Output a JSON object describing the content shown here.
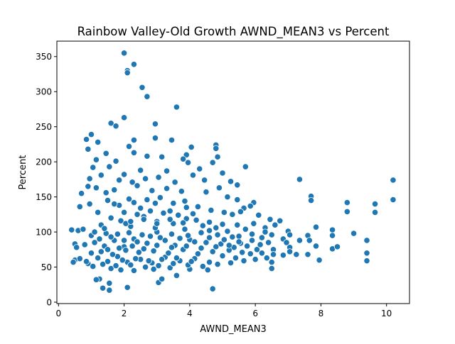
{
  "chart_data": {
    "type": "scatter",
    "title": "Rainbow Valley-Old Growth AWND_MEAN3 vs Percent",
    "xlabel": "AWND_MEAN3",
    "ylabel": "Percent",
    "xlim": [
      -0.05,
      10.7
    ],
    "ylim": [
      -2,
      372
    ],
    "xticks": [
      0,
      2,
      4,
      6,
      8,
      10
    ],
    "yticks": [
      0,
      50,
      100,
      150,
      200,
      250,
      300,
      350
    ],
    "grid": false,
    "marker_color": "#1f77b4",
    "marker_edge_color": "#ffffff",
    "series": [
      {
        "points": [
          [
            2.0,
            355
          ],
          [
            2.3,
            339
          ],
          [
            2.1,
            330
          ],
          [
            2.1,
            327
          ],
          [
            2.55,
            306
          ],
          [
            2.7,
            293
          ],
          [
            3.6,
            278
          ],
          [
            2.0,
            263
          ],
          [
            1.6,
            255
          ],
          [
            2.95,
            254
          ],
          [
            1.75,
            251
          ],
          [
            1.0,
            239
          ],
          [
            0.85,
            232
          ],
          [
            2.3,
            231
          ],
          [
            2.95,
            234
          ],
          [
            3.45,
            231
          ],
          [
            1.2,
            228
          ],
          [
            4.8,
            224
          ],
          [
            4.8,
            219
          ],
          [
            4.05,
            221
          ],
          [
            0.9,
            218
          ],
          [
            2.15,
            222
          ],
          [
            2.3,
            213
          ],
          [
            1.45,
            212
          ],
          [
            1.15,
            203
          ],
          [
            2.7,
            208
          ],
          [
            3.15,
            207
          ],
          [
            3.9,
            210
          ],
          [
            4.85,
            207
          ],
          [
            1.75,
            201
          ],
          [
            1.05,
            192
          ],
          [
            1.55,
            193
          ],
          [
            2.0,
            182
          ],
          [
            2.5,
            188
          ],
          [
            3.3,
            187
          ],
          [
            3.8,
            204
          ],
          [
            4.3,
            190
          ],
          [
            5.0,
            184
          ],
          [
            5.7,
            193
          ],
          [
            3.95,
            199
          ],
          [
            4.7,
            199
          ],
          [
            0.95,
            176
          ],
          [
            1.3,
            181
          ],
          [
            1.85,
            174
          ],
          [
            2.25,
            171
          ],
          [
            2.65,
            176
          ],
          [
            3.05,
            178
          ],
          [
            3.55,
            171
          ],
          [
            4.1,
            181
          ],
          [
            4.45,
            174
          ],
          [
            5.25,
            172
          ],
          [
            5.45,
            167
          ],
          [
            0.7,
            155
          ],
          [
            0.9,
            165
          ],
          [
            1.15,
            163
          ],
          [
            1.45,
            156
          ],
          [
            1.7,
            160
          ],
          [
            2.4,
            166
          ],
          [
            2.85,
            159
          ],
          [
            3.3,
            162
          ],
          [
            3.75,
            158
          ],
          [
            4.5,
            157
          ],
          [
            4.9,
            163
          ],
          [
            5.15,
            150
          ],
          [
            5.45,
            146
          ],
          [
            5.95,
            142
          ],
          [
            5.85,
            137
          ],
          [
            5.65,
            134
          ],
          [
            0.65,
            136
          ],
          [
            0.95,
            140
          ],
          [
            1.2,
            128
          ],
          [
            1.5,
            145
          ],
          [
            1.85,
            138
          ],
          [
            2.15,
            147
          ],
          [
            2.5,
            134
          ],
          [
            2.95,
            141
          ],
          [
            3.4,
            130
          ],
          [
            3.85,
            144
          ],
          [
            4.25,
            136
          ],
          [
            4.65,
            131
          ],
          [
            5.05,
            128
          ],
          [
            5.3,
            125
          ],
          [
            5.55,
            129
          ],
          [
            6.1,
            124
          ],
          [
            6.45,
            118
          ],
          [
            6.6,
            110
          ],
          [
            6.75,
            116
          ],
          [
            6.3,
            106
          ],
          [
            5.7,
            104
          ],
          [
            0.4,
            103
          ],
          [
            0.6,
            102
          ],
          [
            0.75,
            104
          ],
          [
            1.0,
            95
          ],
          [
            1.3,
            110
          ],
          [
            1.6,
            120
          ],
          [
            1.9,
            116
          ],
          [
            2.2,
            108
          ],
          [
            2.6,
            122
          ],
          [
            3.0,
            115
          ],
          [
            3.5,
            112
          ],
          [
            3.9,
            119
          ],
          [
            4.4,
            109
          ],
          [
            4.8,
            106
          ],
          [
            5.15,
            101
          ],
          [
            5.5,
            94
          ],
          [
            5.9,
            97
          ],
          [
            6.2,
            92
          ],
          [
            6.5,
            96
          ],
          [
            6.85,
            90
          ],
          [
            7.0,
            101
          ],
          [
            7.05,
            96
          ],
          [
            0.5,
            83
          ],
          [
            0.55,
            78
          ],
          [
            0.8,
            82
          ],
          [
            1.1,
            85
          ],
          [
            1.4,
            80
          ],
          [
            1.7,
            88
          ],
          [
            2.0,
            79
          ],
          [
            2.3,
            90
          ],
          [
            2.7,
            84
          ],
          [
            3.1,
            92
          ],
          [
            3.55,
            81
          ],
          [
            4.0,
            89
          ],
          [
            4.5,
            85
          ],
          [
            4.95,
            83
          ],
          [
            5.35,
            78
          ],
          [
            5.75,
            80
          ],
          [
            6.15,
            82
          ],
          [
            6.55,
            75
          ],
          [
            6.95,
            85
          ],
          [
            7.05,
            78
          ],
          [
            7.35,
            88
          ],
          [
            7.6,
            95
          ],
          [
            7.65,
            88
          ],
          [
            7.85,
            80
          ],
          [
            7.85,
            107
          ],
          [
            8.35,
            103
          ],
          [
            8.35,
            95
          ],
          [
            0.5,
            60
          ],
          [
            0.45,
            57
          ],
          [
            0.65,
            62
          ],
          [
            0.9,
            55
          ],
          [
            1.2,
            63
          ],
          [
            1.5,
            58
          ],
          [
            1.8,
            65
          ],
          [
            2.1,
            57
          ],
          [
            2.5,
            61
          ],
          [
            2.85,
            56
          ],
          [
            3.25,
            64
          ],
          [
            3.7,
            59
          ],
          [
            4.15,
            62
          ],
          [
            4.6,
            57
          ],
          [
            5.0,
            66
          ],
          [
            5.4,
            63
          ],
          [
            5.85,
            69
          ],
          [
            6.2,
            70
          ],
          [
            6.55,
            68
          ],
          [
            6.85,
            67
          ],
          [
            7.05,
            72
          ],
          [
            7.25,
            68
          ],
          [
            7.6,
            68
          ],
          [
            7.95,
            60
          ],
          [
            8.35,
            76
          ],
          [
            8.5,
            79
          ],
          [
            8.8,
            142
          ],
          [
            8.8,
            129
          ],
          [
            9.0,
            98
          ],
          [
            9.4,
            88
          ],
          [
            9.4,
            70
          ],
          [
            9.4,
            59
          ],
          [
            9.65,
            140
          ],
          [
            9.65,
            128
          ],
          [
            10.2,
            174
          ],
          [
            10.2,
            146
          ],
          [
            7.7,
            151
          ],
          [
            7.7,
            145
          ],
          [
            7.35,
            175
          ],
          [
            1.6,
            48
          ],
          [
            1.9,
            46
          ],
          [
            2.3,
            45
          ],
          [
            2.9,
            47
          ],
          [
            3.4,
            49
          ],
          [
            4.0,
            47
          ],
          [
            4.55,
            46
          ],
          [
            6.5,
            57
          ],
          [
            6.5,
            48
          ],
          [
            1.25,
            33
          ],
          [
            1.15,
            32
          ],
          [
            1.35,
            20
          ],
          [
            1.55,
            27
          ],
          [
            1.55,
            17
          ],
          [
            2.1,
            21
          ],
          [
            3.05,
            28
          ],
          [
            3.15,
            33
          ],
          [
            3.6,
            38
          ],
          [
            4.7,
            19
          ],
          [
            1.0,
            70
          ],
          [
            1.3,
            72
          ],
          [
            1.65,
            68
          ],
          [
            2.05,
            74
          ],
          [
            2.45,
            71
          ],
          [
            2.9,
            73
          ],
          [
            3.35,
            70
          ],
          [
            3.8,
            75
          ],
          [
            4.25,
            69
          ],
          [
            4.7,
            72
          ],
          [
            5.2,
            74
          ],
          [
            5.6,
            71
          ],
          [
            1.1,
            100
          ],
          [
            1.45,
            98
          ],
          [
            1.8,
            97
          ],
          [
            2.15,
            99
          ],
          [
            2.55,
            96
          ],
          [
            3.0,
            100
          ],
          [
            3.45,
            97
          ],
          [
            3.95,
            95
          ],
          [
            4.35,
            99
          ],
          [
            4.85,
            96
          ],
          [
            5.3,
            93
          ],
          [
            2.0,
            128
          ],
          [
            2.4,
            125
          ],
          [
            2.8,
            130
          ],
          [
            3.2,
            127
          ],
          [
            3.65,
            124
          ],
          [
            4.1,
            126
          ],
          [
            1.7,
            140
          ],
          [
            2.3,
            142
          ],
          [
            2.7,
            146
          ],
          [
            3.1,
            149
          ],
          [
            3.5,
            141
          ],
          [
            3.9,
            135
          ],
          [
            1.4,
            105
          ],
          [
            2.05,
            112
          ],
          [
            2.95,
            106
          ],
          [
            3.85,
            104
          ],
          [
            4.6,
            102
          ],
          [
            0.85,
            58
          ],
          [
            1.05,
            51
          ],
          [
            1.35,
            54
          ],
          [
            1.75,
            52
          ],
          [
            2.2,
            53
          ],
          [
            2.65,
            50
          ],
          [
            3.05,
            52
          ],
          [
            3.5,
            55
          ],
          [
            3.95,
            53
          ],
          [
            4.4,
            51
          ],
          [
            4.85,
            54
          ],
          [
            5.25,
            56
          ],
          [
            5.65,
            59
          ],
          [
            6.0,
            61
          ],
          [
            6.35,
            63
          ],
          [
            6.05,
            75
          ],
          [
            6.4,
            85
          ],
          [
            5.9,
            88
          ],
          [
            1.95,
            60
          ],
          [
            2.35,
            62
          ],
          [
            2.75,
            59
          ],
          [
            3.15,
            61
          ],
          [
            3.6,
            63
          ],
          [
            4.05,
            58
          ],
          [
            1.5,
            75
          ],
          [
            1.85,
            77
          ],
          [
            2.25,
            80
          ],
          [
            2.6,
            76
          ],
          [
            3.0,
            81
          ],
          [
            3.45,
            78
          ],
          [
            3.9,
            80
          ],
          [
            4.35,
            77
          ],
          [
            4.8,
            79
          ],
          [
            5.2,
            81
          ],
          [
            5.55,
            84
          ],
          [
            1.25,
            90
          ],
          [
            1.6,
            93
          ],
          [
            2.0,
            88
          ],
          [
            2.4,
            86
          ],
          [
            2.8,
            94
          ],
          [
            3.25,
            88
          ],
          [
            3.7,
            91
          ],
          [
            4.15,
            86
          ],
          [
            4.6,
            92
          ],
          [
            5.05,
            89
          ],
          [
            5.5,
            86
          ],
          [
            2.2,
            115
          ],
          [
            2.6,
            118
          ],
          [
            3.0,
            112
          ],
          [
            3.4,
            118
          ],
          [
            3.8,
            113
          ],
          [
            4.2,
            117
          ],
          [
            4.6,
            114
          ],
          [
            5.0,
            111
          ],
          [
            5.45,
            110
          ],
          [
            5.95,
            112
          ],
          [
            6.3,
            100
          ]
        ]
      }
    ]
  }
}
